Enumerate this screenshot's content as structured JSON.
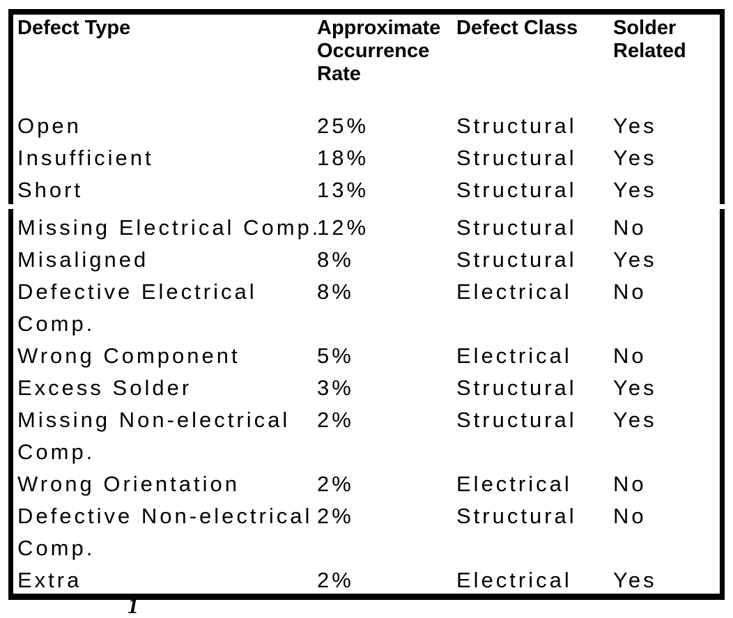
{
  "page": {
    "background_color": "#ffffff",
    "text_color": "#000000",
    "frame_border_color": "#000000"
  },
  "table": {
    "headers": [
      "Defect Type",
      "Approximate Occurrence Rate",
      "Defect Class",
      "Solder Related"
    ],
    "rows": [
      {
        "defect_type": "Open",
        "rate": "25%",
        "defect_class": "Structural",
        "solder_related": "Yes"
      },
      {
        "defect_type": "Insufficient",
        "rate": "18%",
        "defect_class": "Structural",
        "solder_related": "Yes"
      },
      {
        "defect_type": "Short",
        "rate": "13%",
        "defect_class": "Structural",
        "solder_related": "Yes"
      },
      {
        "defect_type": "Missing Electrical Comp.",
        "rate": "12%",
        "defect_class": "Structural",
        "solder_related": "No",
        "page_break_above": true
      },
      {
        "defect_type": "Misaligned",
        "rate": "8%",
        "defect_class": "Structural",
        "solder_related": "Yes"
      },
      {
        "defect_type": "Defective Electrical\nComp.",
        "rate": "8%",
        "defect_class": "Electrical",
        "solder_related": "No"
      },
      {
        "defect_type": "Wrong Component",
        "rate": "5%",
        "defect_class": "Electrical",
        "solder_related": "No"
      },
      {
        "defect_type": "Excess Solder",
        "rate": "3%",
        "defect_class": "Structural",
        "solder_related": "Yes"
      },
      {
        "defect_type": "Missing Non-electrical\nComp.",
        "rate": "2%",
        "defect_class": "Structural",
        "solder_related": "Yes"
      },
      {
        "defect_type": "Wrong Orientation",
        "rate": "2%",
        "defect_class": "Electrical",
        "solder_related": "No"
      },
      {
        "defect_type": "Defective Non-electrical\nComp.",
        "rate": "2%",
        "defect_class": "Structural",
        "solder_related": "No"
      },
      {
        "defect_type": "Extra",
        "rate": "2%",
        "defect_class": "Electrical",
        "solder_related": "Yes"
      }
    ]
  },
  "caption_fragment": {
    "text": "1"
  }
}
